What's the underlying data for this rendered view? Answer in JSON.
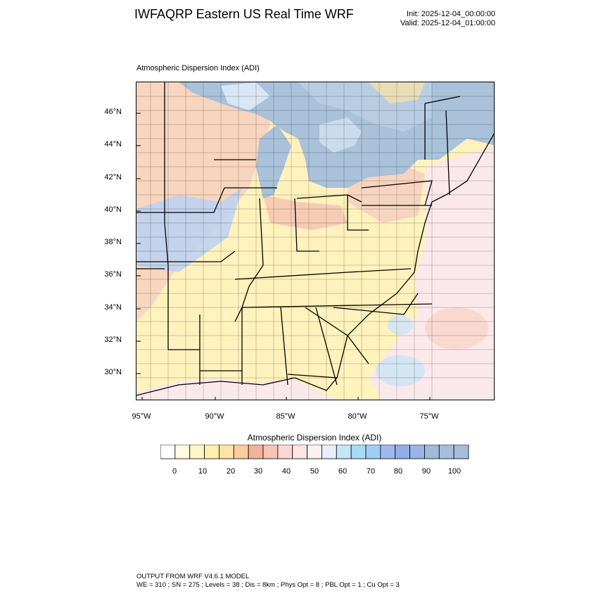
{
  "title": "IWFAQRP Eastern US Real Time WRF",
  "init": "Init: 2025-12-04_00:00:00",
  "valid": "Valid: 2025-12-04_01:00:00",
  "field_title": "Atmospheric Dispersion Index   (ADI)",
  "lat_labels": [
    "46°N",
    "44°N",
    "42°N",
    "40°N",
    "38°N",
    "36°N",
    "34°N",
    "32°N",
    "30°N"
  ],
  "lon_labels": [
    "95°W",
    "90°W",
    "85°W",
    "80°W",
    "75°W"
  ],
  "colorbar": {
    "title": "Atmospheric Dispersion Index  (ADI)",
    "ticks": [
      "0",
      "10",
      "20",
      "30",
      "40",
      "50",
      "60",
      "70",
      "80",
      "90",
      "100"
    ],
    "colors": [
      "#ffffff",
      "#fffbe0",
      "#fff5c8",
      "#ffeeb0",
      "#fde3a6",
      "#f7cd9e",
      "#f3b09b",
      "#f6c3b8",
      "#f9d8d2",
      "#fbe6e2",
      "#faf1f3",
      "#e8effb",
      "#c5e6f7",
      "#a8dcf5",
      "#9fcef4",
      "#a0b8ee",
      "#93aee6",
      "#9bb4e3",
      "#a2b8d8",
      "#a7bfd8",
      "#a6bdd7"
    ]
  },
  "colors": {
    "water": "#a9c1d9",
    "land_low": "#fff2bd",
    "land_mid": "#f5c7b6",
    "ocean": "#fbe8ea",
    "border": "#000000"
  },
  "footer": {
    "line1": "OUTPUT FROM WRF V4.6.1 MODEL",
    "line2": "WE = 310 ; SN = 275 ; Levels = 38 ; Dis = 8km ; Phys Opt = 8 ; PBL Opt = 1 ; Cu Opt = 3"
  }
}
